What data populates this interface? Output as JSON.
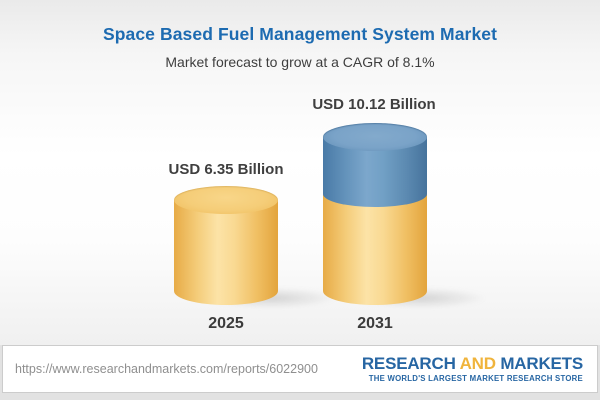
{
  "header": {
    "title": "Space Based Fuel Management System Market",
    "subtitle": "Market forecast to grow at a CAGR of 8.1%"
  },
  "chart_data": {
    "type": "bar",
    "variant": "3d-cylinder",
    "title": "Space Based Fuel Management System Market",
    "subtitle": "Market forecast to grow at a CAGR of 8.1%",
    "categories": [
      "2025",
      "2031"
    ],
    "values": [
      6.35,
      10.12
    ],
    "value_labels": [
      "USD 6.35 Billion",
      "USD 10.12 Billion"
    ],
    "unit": "USD Billion",
    "cagr_percent": 8.1,
    "xlabel": "",
    "ylabel": "",
    "grid": false,
    "legend_position": "none",
    "colors": {
      "base_segment": "#f2c46f",
      "growth_segment": "#6f9cc3",
      "title_text": "#1d6bb1",
      "label_text": "#3f3f3f"
    },
    "notes": "2031 bar is stacked: gold portion equals 2025 value, blue portion shows growth to 10.12"
  },
  "bars": [
    {
      "year": "2025",
      "label": "USD 6.35 Billion"
    },
    {
      "year": "2031",
      "label": "USD 10.12 Billion"
    }
  ],
  "footer": {
    "url": "https://www.researchandmarkets.com/reports/6022900",
    "logo": {
      "word1": "RESEARCH",
      "word2": "AND",
      "word3": "MARKETS",
      "tagline": "THE WORLD'S LARGEST MARKET RESEARCH STORE"
    }
  }
}
